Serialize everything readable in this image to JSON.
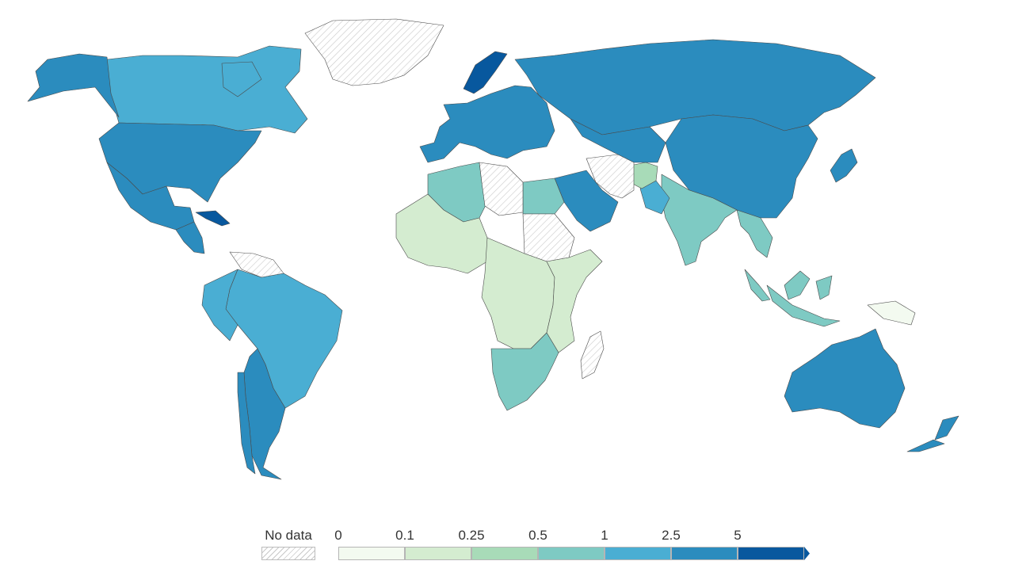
{
  "colors": {
    "no_data_hatch": "#c9c9c9",
    "bin_0": "#f3faf0",
    "bin_1": "#d4ecd0",
    "bin_2": "#a8dbb8",
    "bin_3": "#7ecac3",
    "bin_4": "#4aaed3",
    "bin_5": "#2b8cbe",
    "bin_6": "#08589e",
    "border": "#4a4a4a"
  },
  "legend": {
    "no_data_label": "No data",
    "ticks": [
      "0",
      "0.1",
      "0.25",
      "0.5",
      "1",
      "2.5",
      "5"
    ],
    "open_ended": true
  },
  "regions": [
    {
      "name": "Canada",
      "bin": 4
    },
    {
      "name": "United States",
      "bin": 5
    },
    {
      "name": "Alaska",
      "bin": 5
    },
    {
      "name": "Mexico",
      "bin": 5
    },
    {
      "name": "Cuba",
      "bin": 6
    },
    {
      "name": "Central America",
      "bin": 5
    },
    {
      "name": "Greenland",
      "bin": "no-data"
    },
    {
      "name": "Brazil",
      "bin": 4
    },
    {
      "name": "Argentina",
      "bin": 5
    },
    {
      "name": "Chile",
      "bin": 5
    },
    {
      "name": "Peru",
      "bin": 4
    },
    {
      "name": "Venezuela",
      "bin": "no-data"
    },
    {
      "name": "Northern Europe",
      "bin": 5
    },
    {
      "name": "Norway",
      "bin": 6
    },
    {
      "name": "Russia",
      "bin": 5
    },
    {
      "name": "China",
      "bin": 5
    },
    {
      "name": "Central Asia",
      "bin": 5
    },
    {
      "name": "India",
      "bin": 3
    },
    {
      "name": "Pakistan",
      "bin": 4
    },
    {
      "name": "Afghanistan",
      "bin": 2
    },
    {
      "name": "Saudi Arabia",
      "bin": 5
    },
    {
      "name": "Iran",
      "bin": "no-data"
    },
    {
      "name": "Southeast Asia",
      "bin": 3
    },
    {
      "name": "Indonesia",
      "bin": 3
    },
    {
      "name": "Papua New Guinea",
      "bin": 0
    },
    {
      "name": "Japan",
      "bin": 5
    },
    {
      "name": "Australia",
      "bin": 5
    },
    {
      "name": "New Zealand",
      "bin": 5
    },
    {
      "name": "Algeria",
      "bin": 3
    },
    {
      "name": "Egypt",
      "bin": 3
    },
    {
      "name": "Libya",
      "bin": "no-data"
    },
    {
      "name": "Sudan",
      "bin": "no-data"
    },
    {
      "name": "West Africa",
      "bin": 1
    },
    {
      "name": "Central Africa",
      "bin": 1
    },
    {
      "name": "East Africa",
      "bin": 1
    },
    {
      "name": "Southern Africa",
      "bin": 3
    },
    {
      "name": "Madagascar",
      "bin": "no-data"
    }
  ]
}
